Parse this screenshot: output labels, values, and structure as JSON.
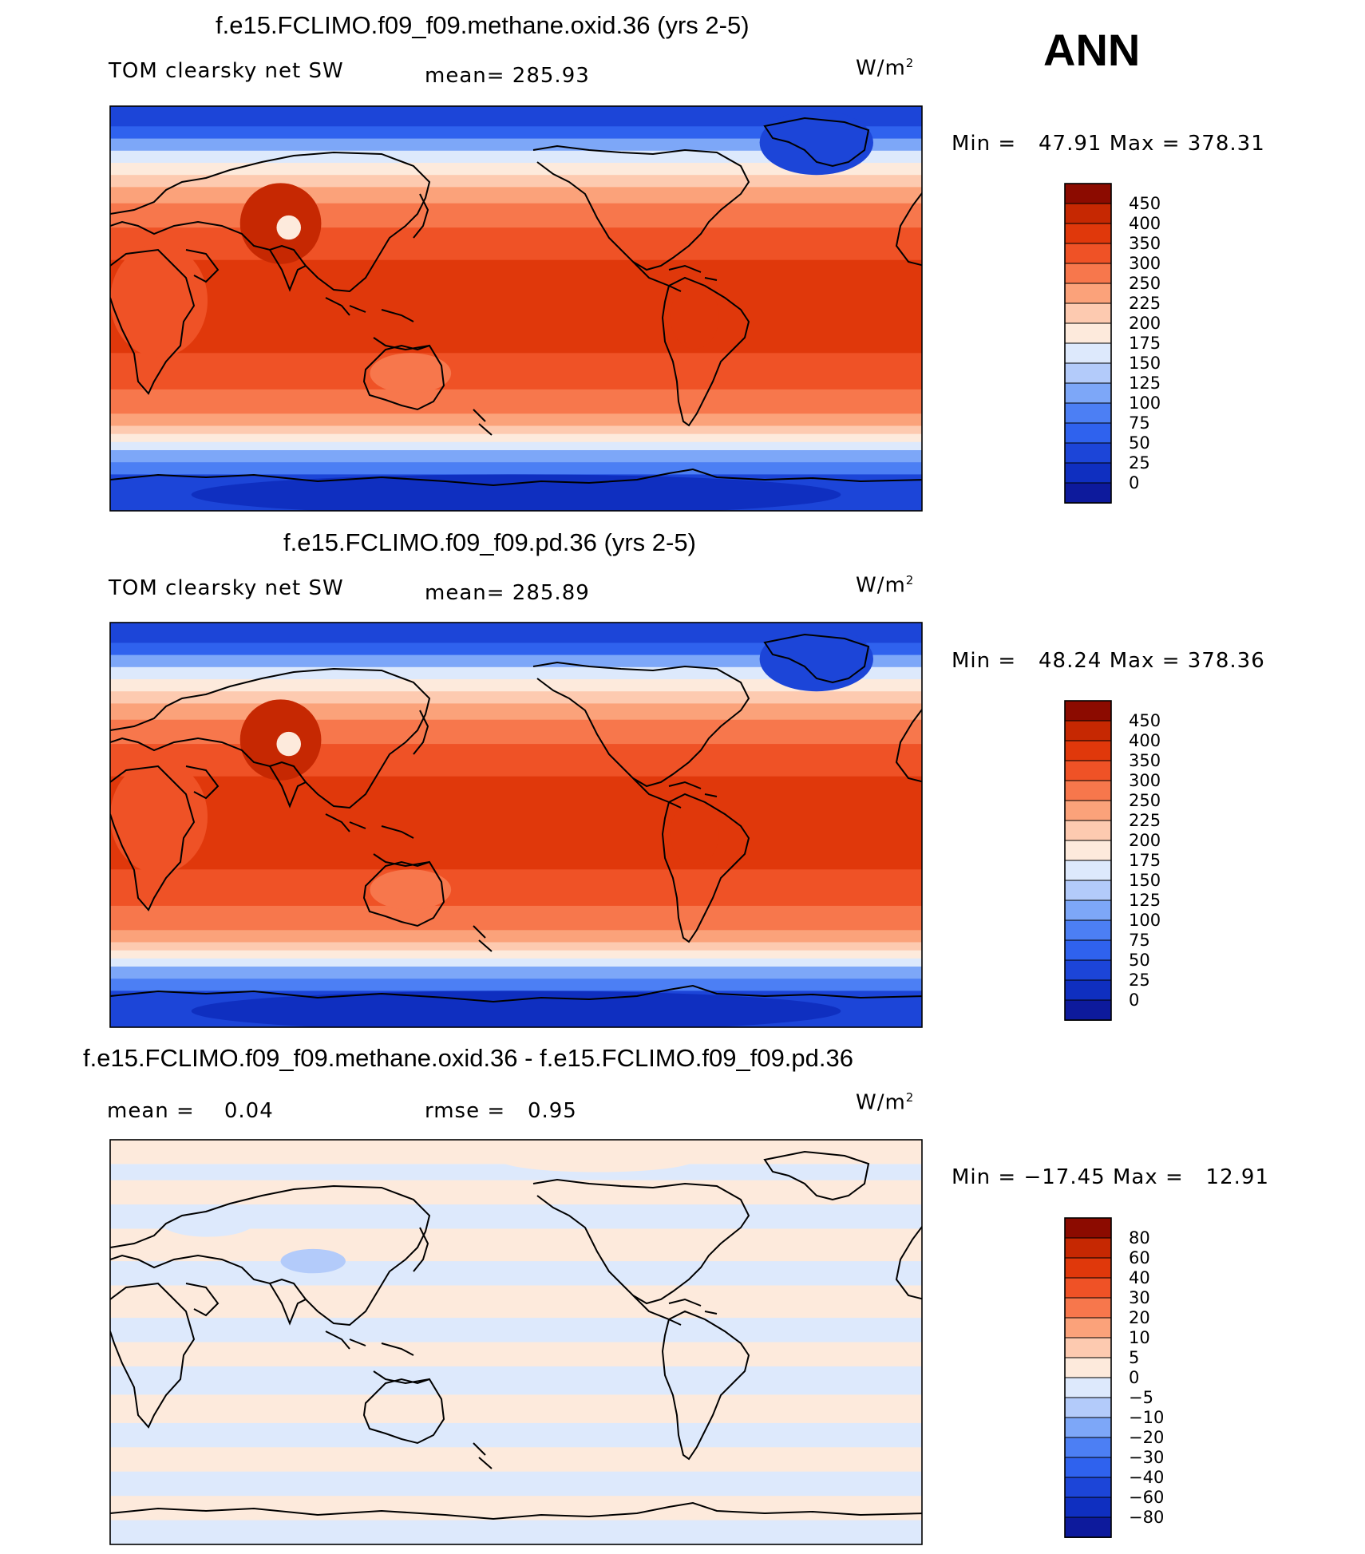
{
  "season": "ANN",
  "colors": {
    "abs_levels": [
      "#08087a",
      "#0d1a9c",
      "#0f2fc0",
      "#1c45d8",
      "#2f62ee",
      "#4c7ff4",
      "#7da7f8",
      "#b3cbfa",
      "#dde9fc",
      "#fdeadc",
      "#fdcab0",
      "#fba27a",
      "#f7774c",
      "#ef5226",
      "#e0380b",
      "#c62802",
      "#8c0b00"
    ],
    "diff_levels": [
      "#08087a",
      "#0d1a9c",
      "#0f2fc0",
      "#1c45d8",
      "#2f62ee",
      "#4c7ff4",
      "#7da7f8",
      "#b3cbfa",
      "#dde9fc",
      "#fdeadc",
      "#fdcab0",
      "#fba27a",
      "#f7774c",
      "#ef5226",
      "#e0380b",
      "#c62802",
      "#8c0b00"
    ]
  },
  "chart_data": [
    {
      "type": "heatmap",
      "title": "f.e15.FCLIMO.f09_f09.methane.oxid.36 (yrs 2-5)",
      "variable": "TOM clearsky net SW",
      "mean_label": "mean=",
      "mean": "285.93",
      "units": "W/m",
      "units_exp": "2",
      "min_label": "Min =",
      "min": "47.91",
      "max_label": "Max =",
      "max": "378.31",
      "colorbar_levels": [
        "450",
        "400",
        "350",
        "300",
        "250",
        "225",
        "200",
        "175",
        "150",
        "125",
        "100",
        "75",
        "50",
        "25",
        "0"
      ]
    },
    {
      "type": "heatmap",
      "title": "f.e15.FCLIMO.f09_f09.pd.36 (yrs 2-5)",
      "variable": "TOM clearsky net SW",
      "mean_label": "mean=",
      "mean": "285.89",
      "units": "W/m",
      "units_exp": "2",
      "min_label": "Min =",
      "min": "48.24",
      "max_label": "Max =",
      "max": "378.36",
      "colorbar_levels": [
        "450",
        "400",
        "350",
        "300",
        "250",
        "225",
        "200",
        "175",
        "150",
        "125",
        "100",
        "75",
        "50",
        "25",
        "0"
      ]
    },
    {
      "type": "heatmap",
      "title": "f.e15.FCLIMO.f09_f09.methane.oxid.36 - f.e15.FCLIMO.f09_f09.pd.36",
      "mean_label": "mean =",
      "mean": "0.04",
      "rmse_label": "rmse =",
      "rmse": "0.95",
      "units": "W/m",
      "units_exp": "2",
      "min_label": "Min =",
      "min": "−17.45",
      "max_label": "Max =",
      "max": "12.91",
      "colorbar_levels": [
        "80",
        "60",
        "40",
        "30",
        "20",
        "10",
        "5",
        "0",
        "−5",
        "−10",
        "−20",
        "−30",
        "−40",
        "−60",
        "−80"
      ]
    }
  ]
}
